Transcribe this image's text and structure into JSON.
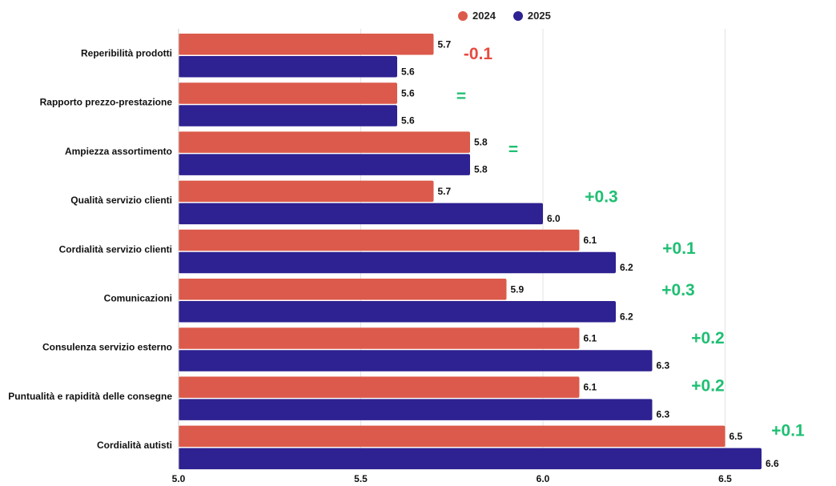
{
  "colors": {
    "series_2024": "#dc5a4b",
    "series_2025": "#2e2191",
    "delta_positive": "#1fbf73",
    "delta_negative": "#e84a3f",
    "grid": "#e3e3e3"
  },
  "legend": {
    "items": [
      {
        "label": "2024"
      },
      {
        "label": "2025"
      }
    ],
    "placement": "top-center"
  },
  "chart_data": {
    "type": "bar",
    "orientation": "horizontal",
    "title": "",
    "xlabel": "",
    "ylabel": "",
    "xlim": [
      5.0,
      6.6
    ],
    "grid": true,
    "xticks": [
      "5.0",
      "5.5",
      "6.0",
      "6.5"
    ],
    "categories": [
      "Reperibilità prodotti",
      "Rapporto prezzo-prestazione",
      "Ampiezza assortimento",
      "Qualità servizio clienti",
      "Cordialità servizio clienti",
      "Comunicazioni",
      "Consulenza servizio esterno",
      "Puntualità e rapidità delle consegne",
      "Cordialità autisti"
    ],
    "series": [
      {
        "name": "2024",
        "values": [
          5.7,
          5.6,
          5.8,
          5.7,
          6.1,
          5.9,
          6.1,
          6.1,
          6.5
        ]
      },
      {
        "name": "2025",
        "values": [
          5.6,
          5.6,
          5.8,
          6.0,
          6.2,
          6.2,
          6.3,
          6.3,
          6.6
        ]
      }
    ],
    "annotations": [
      "-0.1",
      "=",
      "=",
      "+0.3",
      "+0.1",
      "+0.3",
      "+0.2",
      "+0.2",
      "+0.1"
    ]
  }
}
